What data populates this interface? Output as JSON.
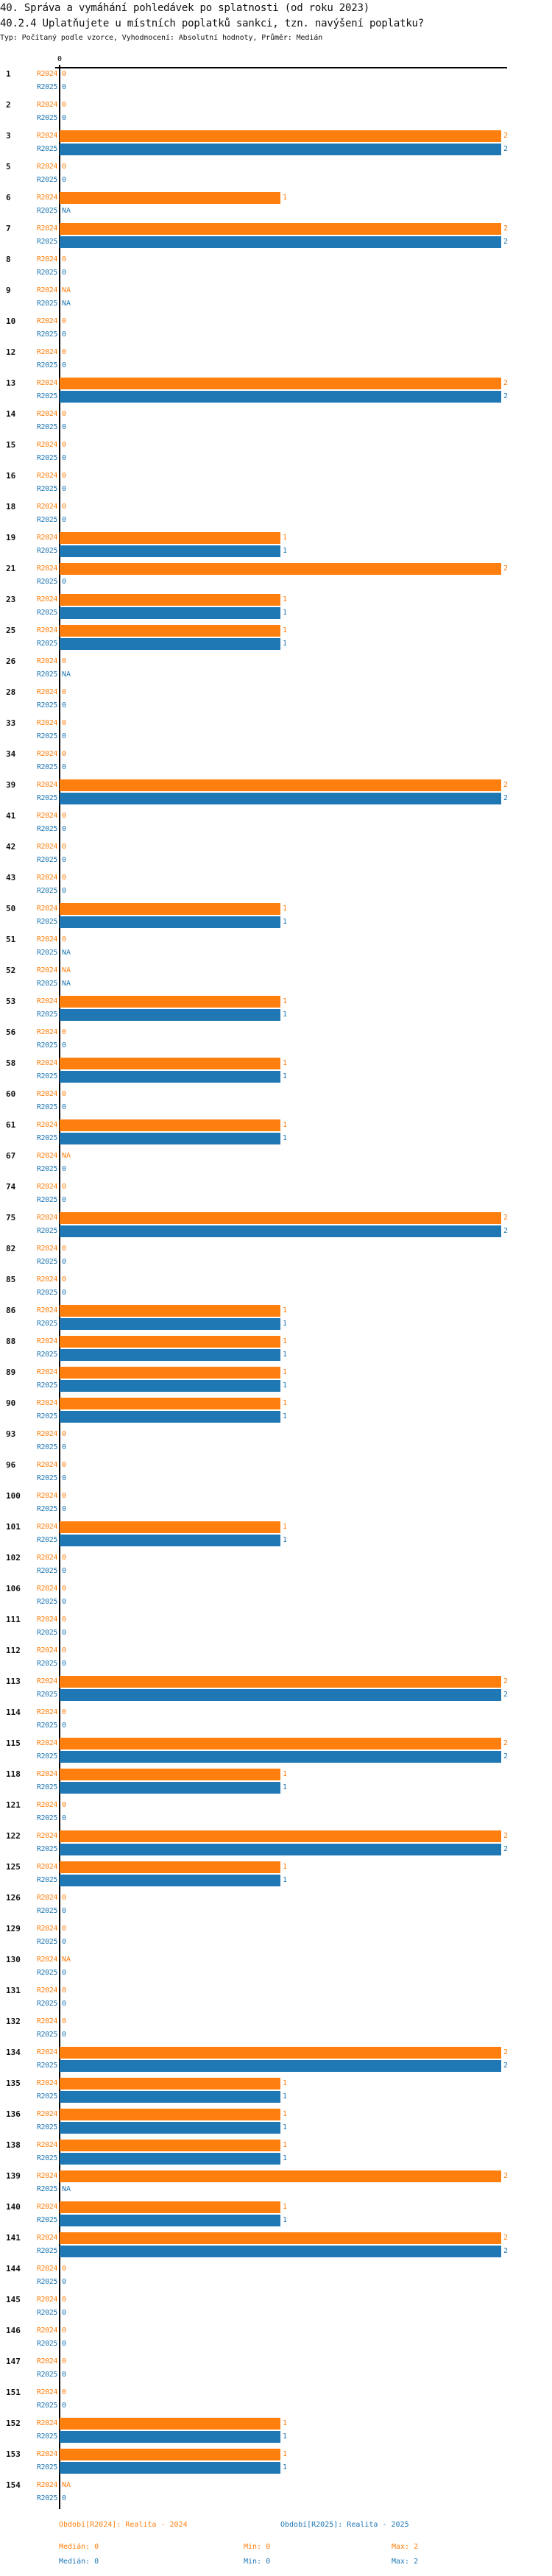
{
  "header": {
    "title": "40. Správa a vymáhání pohledávek po splatnosti (od roku 2023)",
    "subtitle": "40.2.4 Uplatňujete u místních poplatků sankci, tzn. navýšení poplatku?",
    "type_line": "Typ: Počítaný podle vzorce, Vyhodnocení: Absolutní hodnoty, Průměr: Medián"
  },
  "chart_data": {
    "type": "bar",
    "orientation": "horizontal",
    "x_axis_tick": "0",
    "xlim": [
      0,
      2
    ],
    "series": [
      {
        "name": "R2024",
        "label": "Období[R2024]: Realita - 2024",
        "color": "#ff7f0e",
        "median": "Medián: 0",
        "min": "Min: 0",
        "max": "Max: 2"
      },
      {
        "name": "R2025",
        "label": "Období[R2025]: Realita - 2025",
        "color": "#1f77b4",
        "median": "Medián: 0",
        "min": "Min: 0",
        "max": "Max: 2"
      }
    ],
    "groups": [
      {
        "id": "1",
        "R2024": 0,
        "R2025": 0
      },
      {
        "id": "2",
        "R2024": 0,
        "R2025": 0
      },
      {
        "id": "3",
        "R2024": 2,
        "R2025": 2
      },
      {
        "id": "5",
        "R2024": 0,
        "R2025": 0
      },
      {
        "id": "6",
        "R2024": 1,
        "R2025": "NA"
      },
      {
        "id": "7",
        "R2024": 2,
        "R2025": 2
      },
      {
        "id": "8",
        "R2024": 0,
        "R2025": 0
      },
      {
        "id": "9",
        "R2024": "NA",
        "R2025": "NA"
      },
      {
        "id": "10",
        "R2024": 0,
        "R2025": 0
      },
      {
        "id": "12",
        "R2024": 0,
        "R2025": 0
      },
      {
        "id": "13",
        "R2024": 2,
        "R2025": 2
      },
      {
        "id": "14",
        "R2024": 0,
        "R2025": 0
      },
      {
        "id": "15",
        "R2024": 0,
        "R2025": 0
      },
      {
        "id": "16",
        "R2024": 0,
        "R2025": 0
      },
      {
        "id": "18",
        "R2024": 0,
        "R2025": 0
      },
      {
        "id": "19",
        "R2024": 1,
        "R2025": 1
      },
      {
        "id": "21",
        "R2024": 2,
        "R2025": 0
      },
      {
        "id": "23",
        "R2024": 1,
        "R2025": 1
      },
      {
        "id": "25",
        "R2024": 1,
        "R2025": 1
      },
      {
        "id": "26",
        "R2024": 0,
        "R2025": "NA"
      },
      {
        "id": "28",
        "R2024": 0,
        "R2025": 0
      },
      {
        "id": "33",
        "R2024": 0,
        "R2025": 0
      },
      {
        "id": "34",
        "R2024": 0,
        "R2025": 0
      },
      {
        "id": "39",
        "R2024": 2,
        "R2025": 2
      },
      {
        "id": "41",
        "R2024": 0,
        "R2025": 0
      },
      {
        "id": "42",
        "R2024": 0,
        "R2025": 0
      },
      {
        "id": "43",
        "R2024": 0,
        "R2025": 0
      },
      {
        "id": "50",
        "R2024": 1,
        "R2025": 1
      },
      {
        "id": "51",
        "R2024": 0,
        "R2025": "NA"
      },
      {
        "id": "52",
        "R2024": "NA",
        "R2025": "NA"
      },
      {
        "id": "53",
        "R2024": 1,
        "R2025": 1
      },
      {
        "id": "56",
        "R2024": 0,
        "R2025": 0
      },
      {
        "id": "58",
        "R2024": 1,
        "R2025": 1
      },
      {
        "id": "60",
        "R2024": 0,
        "R2025": 0
      },
      {
        "id": "61",
        "R2024": 1,
        "R2025": 1
      },
      {
        "id": "67",
        "R2024": "NA",
        "R2025": 0
      },
      {
        "id": "74",
        "R2024": 0,
        "R2025": 0
      },
      {
        "id": "75",
        "R2024": 2,
        "R2025": 2
      },
      {
        "id": "82",
        "R2024": 0,
        "R2025": 0
      },
      {
        "id": "85",
        "R2024": 0,
        "R2025": 0
      },
      {
        "id": "86",
        "R2024": 1,
        "R2025": 1
      },
      {
        "id": "88",
        "R2024": 1,
        "R2025": 1
      },
      {
        "id": "89",
        "R2024": 1,
        "R2025": 1
      },
      {
        "id": "90",
        "R2024": 1,
        "R2025": 1
      },
      {
        "id": "93",
        "R2024": 0,
        "R2025": 0
      },
      {
        "id": "96",
        "R2024": 0,
        "R2025": 0
      },
      {
        "id": "100",
        "R2024": 0,
        "R2025": 0
      },
      {
        "id": "101",
        "R2024": 1,
        "R2025": 1
      },
      {
        "id": "102",
        "R2024": 0,
        "R2025": 0
      },
      {
        "id": "106",
        "R2024": 0,
        "R2025": 0
      },
      {
        "id": "111",
        "R2024": 0,
        "R2025": 0
      },
      {
        "id": "112",
        "R2024": 0,
        "R2025": 0
      },
      {
        "id": "113",
        "R2024": 2,
        "R2025": 2
      },
      {
        "id": "114",
        "R2024": 0,
        "R2025": 0
      },
      {
        "id": "115",
        "R2024": 2,
        "R2025": 2
      },
      {
        "id": "118",
        "R2024": 1,
        "R2025": 1
      },
      {
        "id": "121",
        "R2024": 0,
        "R2025": 0
      },
      {
        "id": "122",
        "R2024": 2,
        "R2025": 2
      },
      {
        "id": "125",
        "R2024": 1,
        "R2025": 1
      },
      {
        "id": "126",
        "R2024": 0,
        "R2025": 0
      },
      {
        "id": "129",
        "R2024": 0,
        "R2025": 0
      },
      {
        "id": "130",
        "R2024": "NA",
        "R2025": 0
      },
      {
        "id": "131",
        "R2024": 0,
        "R2025": 0
      },
      {
        "id": "132",
        "R2024": 0,
        "R2025": 0
      },
      {
        "id": "134",
        "R2024": 2,
        "R2025": 2
      },
      {
        "id": "135",
        "R2024": 1,
        "R2025": 1
      },
      {
        "id": "136",
        "R2024": 1,
        "R2025": 1
      },
      {
        "id": "138",
        "R2024": 1,
        "R2025": 1
      },
      {
        "id": "139",
        "R2024": 2,
        "R2025": "NA"
      },
      {
        "id": "140",
        "R2024": 1,
        "R2025": 1
      },
      {
        "id": "141",
        "R2024": 2,
        "R2025": 2
      },
      {
        "id": "144",
        "R2024": 0,
        "R2025": 0
      },
      {
        "id": "145",
        "R2024": 0,
        "R2025": 0
      },
      {
        "id": "146",
        "R2024": 0,
        "R2025": 0
      },
      {
        "id": "147",
        "R2024": 0,
        "R2025": 0
      },
      {
        "id": "151",
        "R2024": 0,
        "R2025": 0
      },
      {
        "id": "152",
        "R2024": 1,
        "R2025": 1
      },
      {
        "id": "153",
        "R2024": 1,
        "R2025": 1
      },
      {
        "id": "154",
        "R2024": "NA",
        "R2025": 0
      }
    ]
  }
}
